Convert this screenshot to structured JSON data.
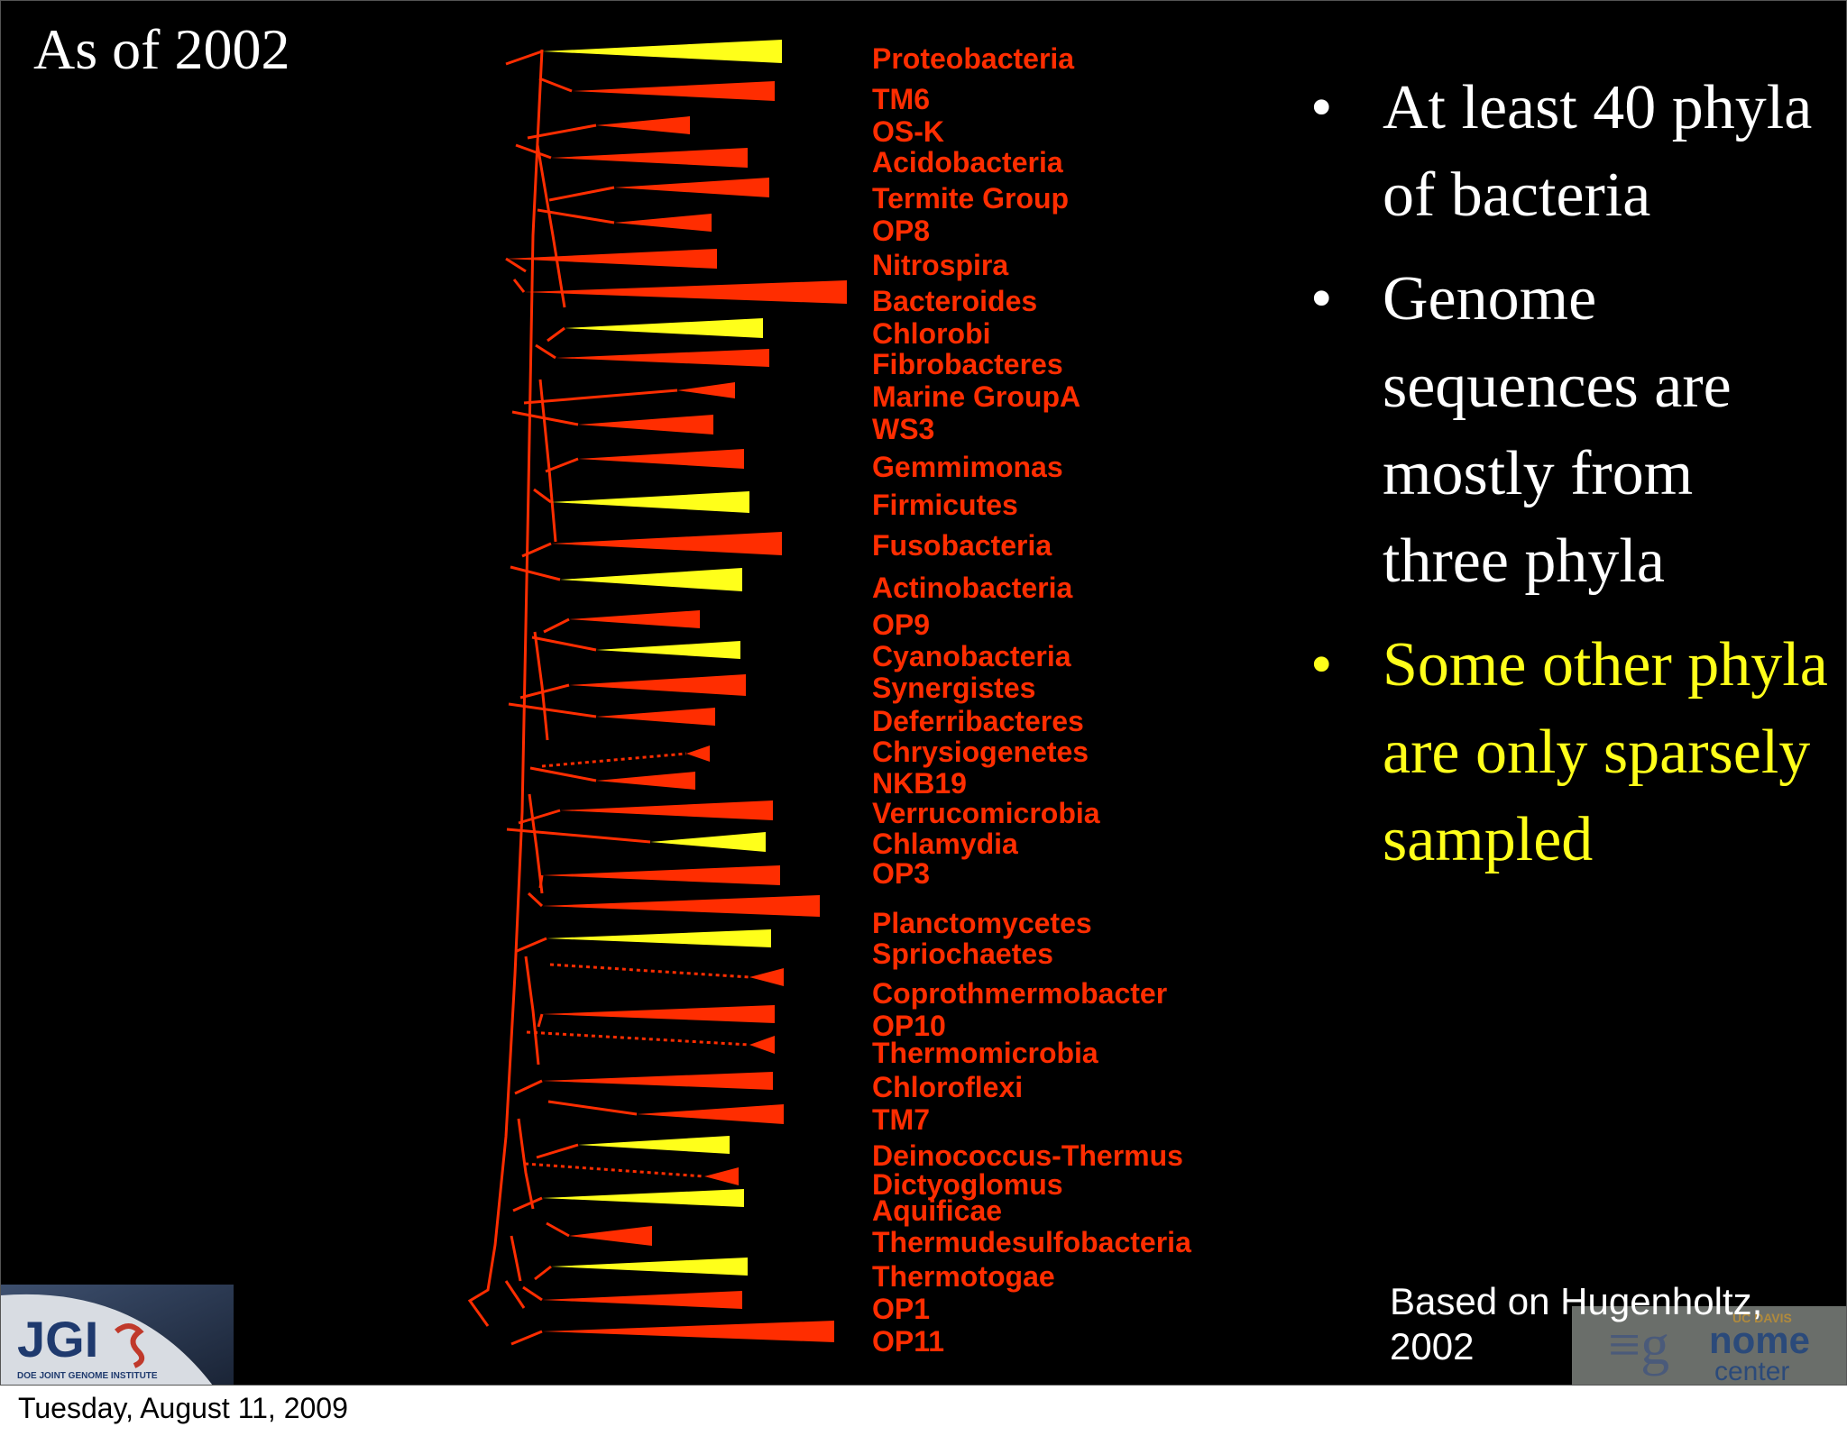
{
  "slide": {
    "title": "As of 2002",
    "bullets": [
      {
        "text": "At least 40 phyla of bacteria",
        "color": "#ffffff"
      },
      {
        "text": "Genome sequences are mostly from three phyla",
        "color": "#ffffff"
      },
      {
        "text": "Some other phyla are only sparsely sampled",
        "color": "#ffff1a"
      }
    ],
    "bullet_symbol": "•",
    "credit": "Based on Hugenholtz, 2002",
    "footer_date": "Tuesday, August 11, 2009"
  },
  "tree": {
    "branch_color": "#ff2d00",
    "sampled_color": "#ffff1a",
    "unsampled_color": "#ff2d00",
    "phyla": [
      {
        "name": "Proteobacteria",
        "sampled": true
      },
      {
        "name": "TM6",
        "sampled": false
      },
      {
        "name": "OS-K",
        "sampled": false
      },
      {
        "name": "Acidobacteria",
        "sampled": false
      },
      {
        "name": "Termite Group",
        "sampled": false
      },
      {
        "name": "OP8",
        "sampled": false
      },
      {
        "name": "Nitrospira",
        "sampled": false
      },
      {
        "name": "Bacteroides",
        "sampled": false
      },
      {
        "name": "Chlorobi",
        "sampled": true
      },
      {
        "name": "Fibrobacteres",
        "sampled": false
      },
      {
        "name": "Marine GroupA",
        "sampled": false
      },
      {
        "name": "WS3",
        "sampled": false
      },
      {
        "name": "Gemmimonas",
        "sampled": false
      },
      {
        "name": "Firmicutes",
        "sampled": true
      },
      {
        "name": "Fusobacteria",
        "sampled": false
      },
      {
        "name": "Actinobacteria",
        "sampled": true
      },
      {
        "name": "OP9",
        "sampled": false
      },
      {
        "name": "Cyanobacteria",
        "sampled": true
      },
      {
        "name": "Synergistes",
        "sampled": false
      },
      {
        "name": "Deferribacteres",
        "sampled": false
      },
      {
        "name": "Chrysiogenetes",
        "sampled": false
      },
      {
        "name": "NKB19",
        "sampled": false
      },
      {
        "name": "Verrucomicrobia",
        "sampled": false
      },
      {
        "name": "Chlamydia",
        "sampled": true
      },
      {
        "name": "OP3",
        "sampled": false
      },
      {
        "name": "Planctomycetes",
        "sampled": false
      },
      {
        "name": "Spriochaetes",
        "sampled": true
      },
      {
        "name": "Coprothmermobacter",
        "sampled": false
      },
      {
        "name": "OP10",
        "sampled": false
      },
      {
        "name": "Thermomicrobia",
        "sampled": false
      },
      {
        "name": "Chloroflexi",
        "sampled": false
      },
      {
        "name": "TM7",
        "sampled": false
      },
      {
        "name": "Deinococcus-Thermus",
        "sampled": true
      },
      {
        "name": "Dictyoglomus",
        "sampled": false
      },
      {
        "name": "Aquificae",
        "sampled": true
      },
      {
        "name": "Thermudesulfobacteria",
        "sampled": false
      },
      {
        "name": "Thermotogae",
        "sampled": true
      },
      {
        "name": "OP1",
        "sampled": false
      },
      {
        "name": "OP11",
        "sampled": false
      }
    ]
  },
  "logos": {
    "jgi": {
      "text": "JGI",
      "subtitle": "DOE JOINT GENOME INSTITUTE"
    },
    "genome_center": {
      "top": "UC DAVIS",
      "word1": "nome",
      "word2": "center"
    }
  }
}
